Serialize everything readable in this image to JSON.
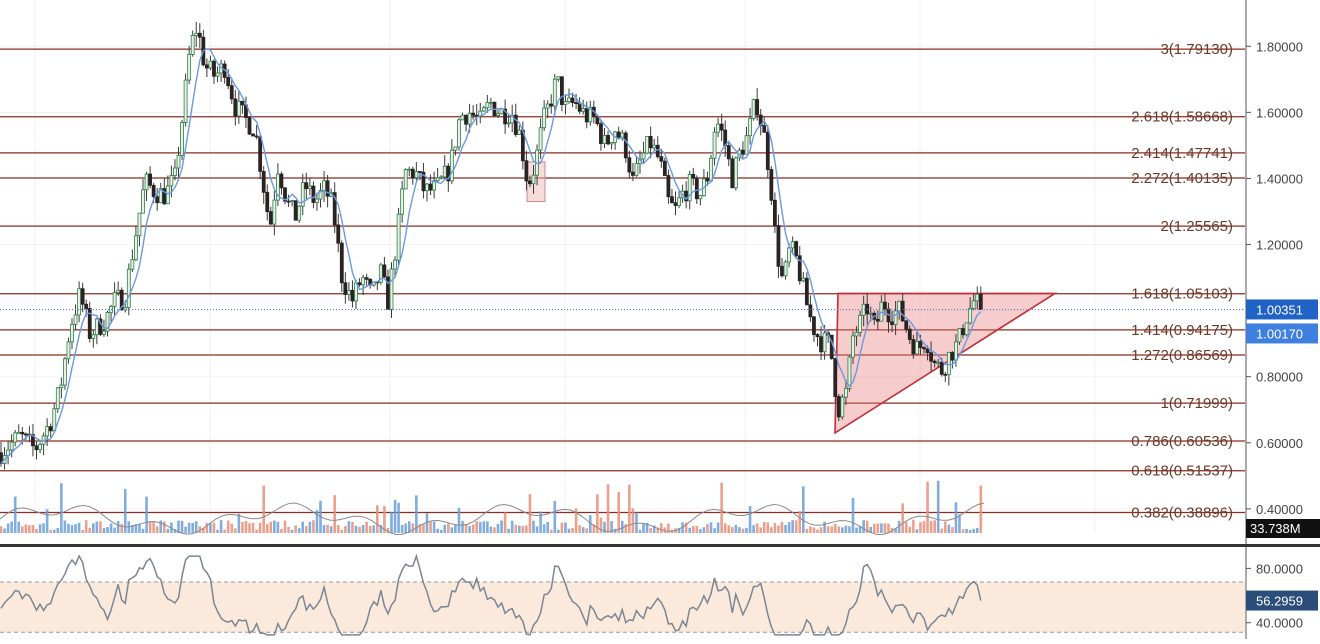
{
  "colors": {
    "fib_line": "#8b2d20",
    "fib_label": "#6b3a2a",
    "bull_body": "#e7f0e4",
    "bull_border": "#2f7d4a",
    "bear_body": "#2b2323",
    "wick": "#3a3a3a",
    "ma_line": "#6a9ae0",
    "triangle_fill": "#e87979",
    "triangle_stroke": "#c0303a",
    "vol_up": "#6b9ed8",
    "vol_down": "#e88f7a",
    "rsi_line": "#7a8694",
    "rsi_band": "#fbeadc",
    "current_price_bg": "#1f63c6",
    "volume_badge_bg": "#111111"
  },
  "chart_data": [
    {
      "type": "candlestick",
      "panel": "price",
      "ylim": [
        0.33,
        1.94
      ],
      "y_ticks": [
        "1.80000",
        "1.60000",
        "1.40000",
        "1.20000",
        "1.00000",
        "0.80000",
        "0.60000",
        "0.40000"
      ],
      "y_tick_values": [
        1.8,
        1.6,
        1.4,
        1.2,
        1.0,
        0.8,
        0.6,
        0.4
      ],
      "fib_levels": [
        {
          "label": "3(1.79130)",
          "value": 1.7913
        },
        {
          "label": "2.618(1.58668)",
          "value": 1.58668
        },
        {
          "label": "2.414(1.47741)",
          "value": 1.47741
        },
        {
          "label": "2.272(1.40135)",
          "value": 1.40135
        },
        {
          "label": "2(1.25565)",
          "value": 1.25565
        },
        {
          "label": "1.618(1.05103)",
          "value": 1.05103
        },
        {
          "label": "1.414(0.94175)",
          "value": 0.94175
        },
        {
          "label": "1.272(0.86569)",
          "value": 0.86569
        },
        {
          "label": "1(0.71999)",
          "value": 0.71999
        },
        {
          "label": "0.786(0.60536)",
          "value": 0.60536
        },
        {
          "label": "0.618(0.51537)",
          "value": 0.51537
        },
        {
          "label": "0.382(0.38896)",
          "value": 0.38896
        }
      ],
      "current_price": {
        "label": "1.00351",
        "value": 1.00351
      },
      "secondary_price": {
        "label": "1.00170",
        "value": 1.0017
      },
      "volume_label": "33.738M",
      "price_keypoints": [
        [
          0,
          0.57
        ],
        [
          20,
          0.62
        ],
        [
          35,
          0.58
        ],
        [
          50,
          0.66
        ],
        [
          60,
          0.76
        ],
        [
          70,
          0.95
        ],
        [
          80,
          1.05
        ],
        [
          90,
          0.93
        ],
        [
          105,
          0.97
        ],
        [
          115,
          1.03
        ],
        [
          125,
          1.04
        ],
        [
          135,
          1.22
        ],
        [
          145,
          1.39
        ],
        [
          155,
          1.36
        ],
        [
          165,
          1.35
        ],
        [
          175,
          1.4
        ],
        [
          183,
          1.6
        ],
        [
          190,
          1.79
        ],
        [
          197,
          1.86
        ],
        [
          205,
          1.74
        ],
        [
          215,
          1.71
        ],
        [
          225,
          1.74
        ],
        [
          235,
          1.62
        ],
        [
          245,
          1.58
        ],
        [
          255,
          1.55
        ],
        [
          262,
          1.41
        ],
        [
          270,
          1.25
        ],
        [
          278,
          1.44
        ],
        [
          287,
          1.33
        ],
        [
          295,
          1.28
        ],
        [
          305,
          1.38
        ],
        [
          315,
          1.33
        ],
        [
          325,
          1.37
        ],
        [
          333,
          1.31
        ],
        [
          342,
          1.1
        ],
        [
          352,
          1.03
        ],
        [
          362,
          1.1
        ],
        [
          372,
          1.04
        ],
        [
          380,
          1.12
        ],
        [
          388,
          1.03
        ],
        [
          397,
          1.22
        ],
        [
          405,
          1.42
        ],
        [
          415,
          1.42
        ],
        [
          425,
          1.36
        ],
        [
          437,
          1.37
        ],
        [
          450,
          1.43
        ],
        [
          460,
          1.59
        ],
        [
          470,
          1.6
        ],
        [
          480,
          1.57
        ],
        [
          490,
          1.63
        ],
        [
          500,
          1.6
        ],
        [
          512,
          1.6
        ],
        [
          520,
          1.53
        ],
        [
          528,
          1.38
        ],
        [
          535,
          1.44
        ],
        [
          543,
          1.57
        ],
        [
          550,
          1.63
        ],
        [
          557,
          1.7
        ],
        [
          565,
          1.61
        ],
        [
          575,
          1.63
        ],
        [
          585,
          1.59
        ],
        [
          595,
          1.58
        ],
        [
          605,
          1.5
        ],
        [
          615,
          1.55
        ],
        [
          625,
          1.5
        ],
        [
          633,
          1.39
        ],
        [
          640,
          1.45
        ],
        [
          650,
          1.51
        ],
        [
          660,
          1.45
        ],
        [
          668,
          1.33
        ],
        [
          675,
          1.3
        ],
        [
          682,
          1.35
        ],
        [
          690,
          1.38
        ],
        [
          700,
          1.35
        ],
        [
          708,
          1.41
        ],
        [
          716,
          1.58
        ],
        [
          724,
          1.52
        ],
        [
          732,
          1.4
        ],
        [
          740,
          1.48
        ],
        [
          748,
          1.53
        ],
        [
          756,
          1.64
        ],
        [
          764,
          1.53
        ],
        [
          770,
          1.41
        ],
        [
          776,
          1.2
        ],
        [
          783,
          1.08
        ],
        [
          790,
          1.19
        ],
        [
          797,
          1.15
        ],
        [
          805,
          1.04
        ],
        [
          812,
          0.96
        ],
        [
          820,
          0.91
        ],
        [
          830,
          0.9
        ],
        [
          838,
          0.7
        ],
        [
          846,
          0.75
        ],
        [
          853,
          0.92
        ],
        [
          860,
          0.96
        ],
        [
          867,
          1.01
        ],
        [
          875,
          0.94
        ],
        [
          883,
          1.03
        ],
        [
          890,
          0.99
        ],
        [
          900,
          1.0
        ],
        [
          910,
          0.92
        ],
        [
          918,
          0.88
        ],
        [
          926,
          0.92
        ],
        [
          934,
          0.84
        ],
        [
          942,
          0.82
        ],
        [
          950,
          0.87
        ],
        [
          958,
          0.9
        ],
        [
          966,
          0.98
        ],
        [
          974,
          1.03
        ],
        [
          984,
          1.0
        ]
      ],
      "triangle": [
        [
          835,
          0.63
        ],
        [
          838,
          1.052
        ],
        [
          1055,
          1.052
        ]
      ],
      "highlight_box": {
        "x_from": 527,
        "x_to": 545,
        "low": 1.33,
        "high": 1.45
      }
    },
    {
      "type": "bar",
      "panel": "volume",
      "ylim": [
        0,
        1
      ],
      "note": "volume bars shown relative to the volume panel"
    },
    {
      "type": "line",
      "panel": "rsi",
      "ylim": [
        28,
        95
      ],
      "y_ticks": [
        "80.0000",
        "40.0000"
      ],
      "y_tick_values": [
        80,
        40
      ],
      "band": [
        33,
        70
      ],
      "current_value": {
        "label": "56.2959",
        "value": 56.2959
      }
    }
  ]
}
